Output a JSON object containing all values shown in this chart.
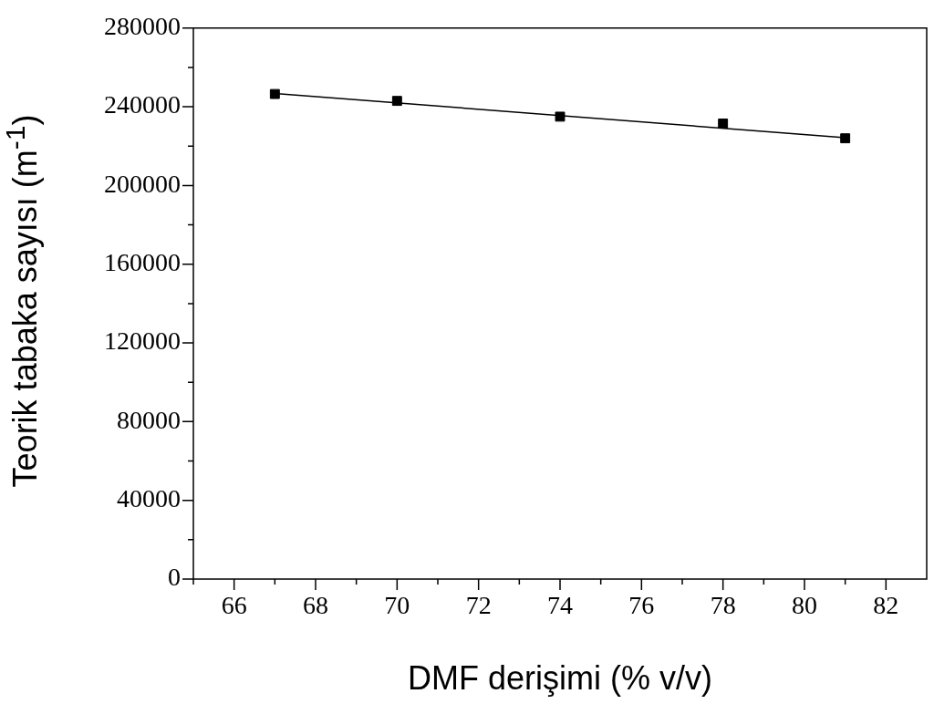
{
  "chart_data": {
    "type": "scatter",
    "xlabel": "DMF derişimi (% v/v)",
    "ylabel": "Teorik tabaka sayısı (m$^{-1}$)",
    "series": [
      {
        "type": "scatter",
        "color": "#000000",
        "marker": "square",
        "x": [
          67,
          70,
          74,
          78,
          81
        ],
        "values": [
          246500,
          243000,
          235000,
          231500,
          224000
        ]
      },
      {
        "type": "line",
        "color": "#000000",
        "marker": "none",
        "line_style": "solid",
        "x": [
          67,
          81
        ],
        "values": [
          246800,
          224300
        ]
      }
    ],
    "xlim": [
      65,
      83
    ],
    "xticks": [
      {
        "value": 65,
        "label": null
      },
      66,
      {
        "value": 67,
        "label": null
      },
      68,
      {
        "value": 69,
        "label": null
      },
      70,
      {
        "value": 71,
        "label": null
      },
      72,
      {
        "value": 73,
        "label": null
      },
      74,
      {
        "value": 75,
        "label": null
      },
      76,
      {
        "value": 77,
        "label": null
      },
      78,
      {
        "value": 79,
        "label": null
      },
      80,
      {
        "value": 81,
        "label": null
      },
      82
    ],
    "ylim": [
      0,
      280000
    ],
    "yticks": [
      0,
      {
        "value": 20000,
        "label": null
      },
      40000,
      {
        "value": 60000,
        "label": null
      },
      80000,
      {
        "value": 100000,
        "label": null
      },
      120000,
      {
        "value": 140000,
        "label": null
      },
      160000,
      {
        "value": 180000,
        "label": null
      },
      200000,
      {
        "value": 220000,
        "label": null
      },
      240000,
      {
        "value": 260000,
        "label": null
      },
      280000
    ],
    "grid": false,
    "legend": false
  }
}
